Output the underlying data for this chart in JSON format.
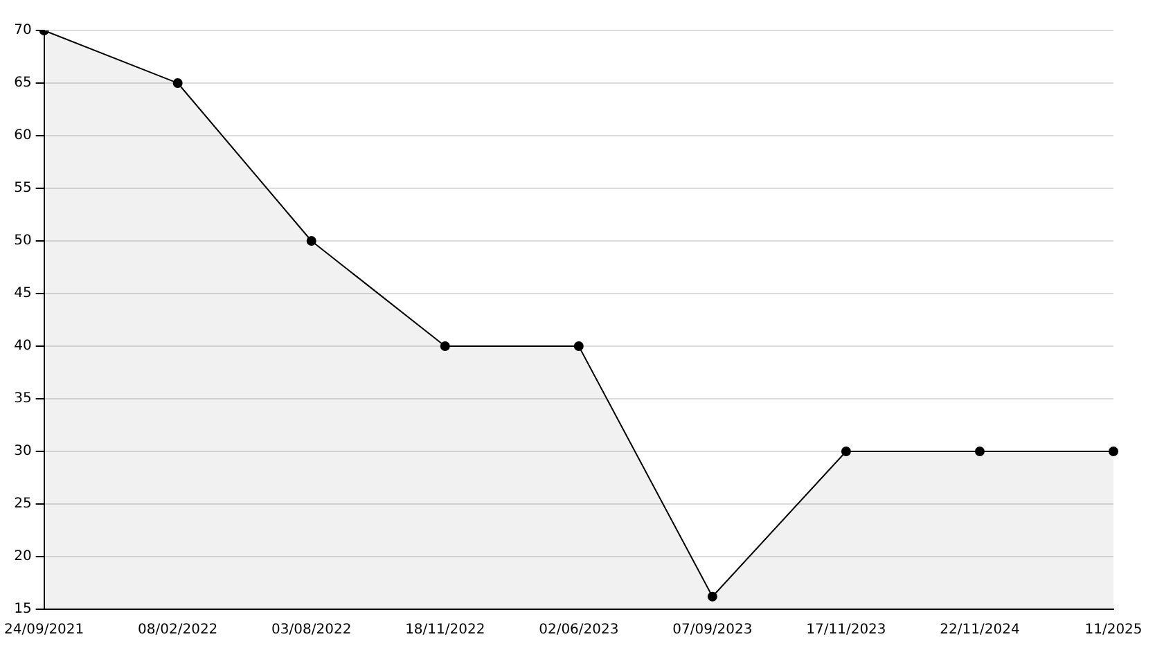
{
  "chart_data": {
    "type": "area",
    "categories": [
      "24/09/2021",
      "08/02/2022",
      "03/08/2022",
      "18/11/2022",
      "02/06/2023",
      "07/09/2023",
      "17/11/2023",
      "22/11/2024",
      "11/2025"
    ],
    "series": [
      {
        "color": "#000000",
        "values": [
          70,
          65,
          50,
          40,
          40,
          16.2,
          30,
          30,
          30
        ]
      }
    ],
    "ylim": [
      15,
      70
    ],
    "yticks": [
      15,
      20,
      25,
      30,
      35,
      40,
      45,
      50,
      55,
      60,
      65,
      70
    ],
    "grid": "y",
    "legend": false,
    "marker": "circle",
    "line_style": "solid"
  }
}
